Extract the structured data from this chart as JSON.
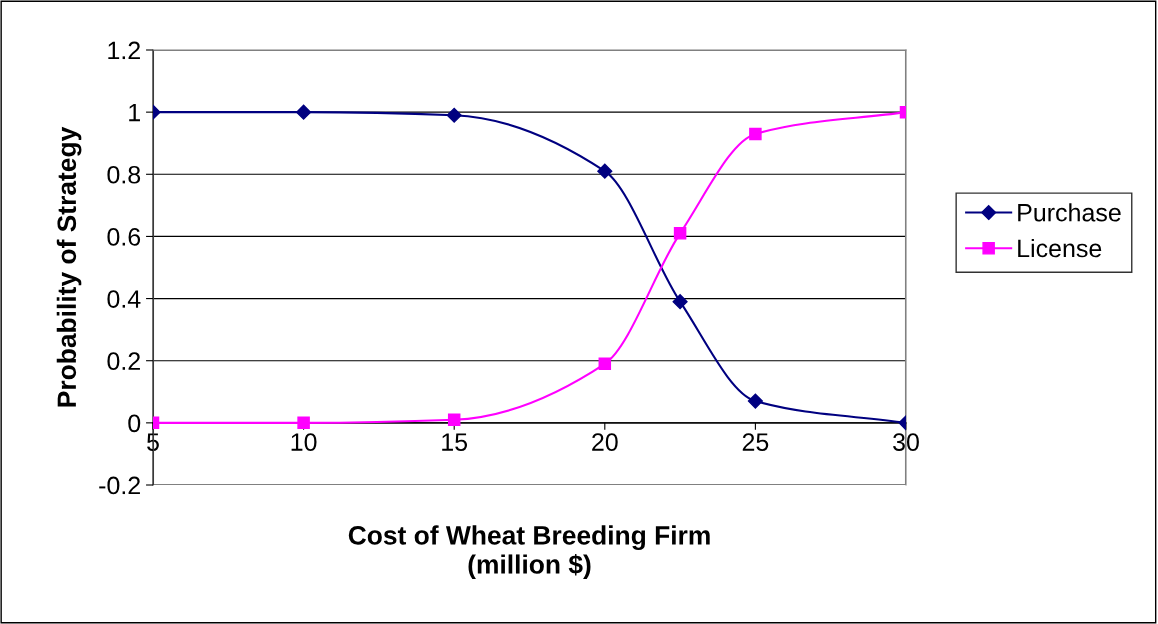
{
  "chart_data": {
    "type": "line",
    "xlabel": "Cost of Wheat Breeding Firm\n(million $)",
    "ylabel": "Probability of Strategy",
    "x": [
      5,
      10,
      15,
      20,
      22.5,
      25,
      30
    ],
    "series": [
      {
        "name": "Purchase",
        "color": "#000080",
        "marker": "diamond",
        "values": [
          1,
          1,
          0.99,
          0.81,
          0.39,
          0.07,
          0
        ]
      },
      {
        "name": "License",
        "color": "#ff00ff",
        "marker": "square",
        "values": [
          0,
          0,
          0.01,
          0.19,
          0.61,
          0.93,
          1
        ]
      }
    ],
    "xlim": [
      5,
      30
    ],
    "xticks": [
      5,
      10,
      15,
      20,
      25,
      30
    ],
    "ylim": [
      -0.2,
      1.2
    ],
    "yticks": [
      -0.2,
      0,
      0.2,
      0.4,
      0.6,
      0.8,
      1,
      1.2
    ],
    "grid": "y",
    "legend": "right",
    "line_style": "solid"
  }
}
